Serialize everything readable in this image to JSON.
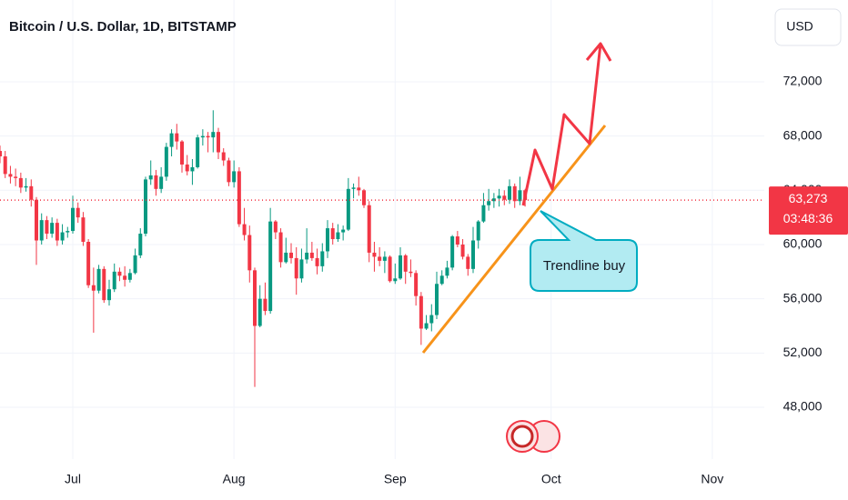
{
  "chart_data": {
    "type": "candlestick",
    "title": "Bitcoin / U.S. Dollar, 1D, BITSTAMP",
    "currency": "USD",
    "annotation": "Trendline buy",
    "up_color": "#089981",
    "down_color": "#f23645",
    "x": [
      0,
      1,
      2,
      3,
      4,
      5,
      6,
      7,
      8,
      9,
      10,
      11,
      12,
      13,
      14,
      15,
      16,
      17,
      18,
      19,
      20,
      21,
      22,
      23,
      24,
      25,
      26,
      27,
      28,
      29,
      30,
      31,
      32,
      33,
      34,
      35,
      36,
      37,
      38,
      39,
      40,
      41,
      42,
      43,
      44,
      45,
      46,
      47,
      48,
      49,
      50,
      51,
      52,
      53,
      54,
      55,
      56,
      57,
      58,
      59,
      60,
      61,
      62,
      63,
      64,
      65,
      66,
      67,
      68,
      69,
      70,
      71,
      72,
      73,
      74,
      75,
      76,
      77,
      78,
      79,
      80,
      81,
      82,
      83,
      84,
      85,
      86,
      87,
      88,
      89,
      90,
      91,
      92,
      93,
      94,
      95,
      96,
      97,
      98,
      99,
      100,
      101
    ],
    "open": [
      66900,
      66500,
      65200,
      65000,
      64900,
      64200,
      64300,
      63300,
      60300,
      61800,
      60800,
      61600,
      60300,
      60900,
      61000,
      62700,
      62000,
      60200,
      57000,
      56600,
      58200,
      55900,
      56700,
      58000,
      57700,
      57400,
      57900,
      59200,
      60800,
      64800,
      65100,
      64100,
      65000,
      67200,
      68200,
      67600,
      65900,
      65400,
      65700,
      67900,
      68000,
      67900,
      68300,
      66800,
      66200,
      64600,
      65400,
      61500,
      60700,
      58100,
      54000,
      56000,
      55100,
      61700,
      60900,
      58700,
      59400,
      59000,
      57500,
      58900,
      59400,
      59000,
      58400,
      59500,
      61200,
      60400,
      60900,
      61100,
      64100,
      64200,
      64000,
      62900,
      59400,
      59100,
      58800,
      59100,
      57300,
      57500,
      59200,
      58000,
      57900,
      56200,
      53800,
      54200,
      54800,
      57100,
      57700,
      58300,
      60600,
      60000,
      59100,
      58200,
      60300,
      61700,
      62900,
      63200,
      63400,
      63600,
      63300,
      64300,
      63200,
      64000
    ],
    "high": [
      67300,
      66900,
      65800,
      65600,
      65300,
      64900,
      64800,
      63500,
      62300,
      62100,
      62000,
      61900,
      61500,
      61300,
      63600,
      63100,
      62400,
      60400,
      58300,
      58500,
      58400,
      57400,
      58600,
      58300,
      58400,
      58200,
      59700,
      61200,
      65000,
      66200,
      65500,
      65700,
      67500,
      68500,
      68900,
      67700,
      66600,
      66300,
      68100,
      68500,
      68300,
      69900,
      68600,
      67100,
      66400,
      66200,
      65700,
      62700,
      61400,
      58300,
      57000,
      57200,
      62700,
      61800,
      61200,
      60500,
      60100,
      59800,
      59700,
      61200,
      60200,
      59700,
      60100,
      61800,
      61600,
      61500,
      61400,
      64900,
      64500,
      65000,
      64100,
      63200,
      60200,
      59800,
      59500,
      59200,
      58600,
      59800,
      59300,
      58900,
      58100,
      56500,
      54800,
      55600,
      58000,
      58100,
      58800,
      60700,
      61000,
      60400,
      59300,
      61300,
      61800,
      63800,
      64100,
      63800,
      64100,
      64000,
      64800,
      64500,
      65000,
      64100
    ],
    "low": [
      66000,
      64900,
      64500,
      64300,
      63800,
      63900,
      62800,
      58500,
      60000,
      60400,
      60500,
      59900,
      60000,
      60500,
      60800,
      61600,
      59900,
      56800,
      53500,
      56400,
      55700,
      55500,
      56500,
      57300,
      56900,
      57200,
      57800,
      59000,
      60600,
      64400,
      63600,
      63800,
      64700,
      66500,
      67000,
      65300,
      65100,
      64400,
      65600,
      67300,
      66800,
      66800,
      66300,
      65800,
      64300,
      64200,
      61300,
      60300,
      57200,
      49500,
      53900,
      54800,
      54900,
      60400,
      58300,
      58600,
      58600,
      56300,
      57200,
      58600,
      58800,
      57800,
      58000,
      59000,
      60000,
      60200,
      60300,
      61000,
      63400,
      63600,
      62700,
      58700,
      58000,
      58400,
      57900,
      57200,
      57100,
      57400,
      57100,
      57600,
      55500,
      52600,
      53700,
      53600,
      54500,
      57000,
      57500,
      58100,
      59800,
      58900,
      57700,
      57900,
      59700,
      61600,
      62500,
      62700,
      62800,
      62900,
      63000,
      62700,
      62900,
      62800
    ],
    "close": [
      66500,
      65200,
      65000,
      64900,
      64200,
      64300,
      63300,
      60300,
      61800,
      60800,
      61600,
      60300,
      60900,
      61000,
      62700,
      62000,
      60200,
      57000,
      56600,
      58200,
      55900,
      56700,
      58000,
      57700,
      57400,
      57900,
      59200,
      60800,
      64800,
      65100,
      64100,
      65000,
      67200,
      68200,
      67600,
      65900,
      65400,
      65700,
      67900,
      68000,
      67900,
      68300,
      66800,
      66200,
      64600,
      65400,
      61500,
      60700,
      58100,
      54000,
      56000,
      55100,
      61700,
      60900,
      58700,
      59400,
      59000,
      57500,
      58900,
      59400,
      59000,
      58400,
      59500,
      61200,
      60400,
      60900,
      61100,
      64100,
      64200,
      64000,
      62900,
      59400,
      59100,
      58800,
      59100,
      57300,
      57500,
      59200,
      58000,
      57900,
      56200,
      53800,
      54200,
      54800,
      57100,
      57700,
      58300,
      60600,
      60000,
      59100,
      58200,
      60300,
      61700,
      62900,
      63200,
      63400,
      63600,
      63300,
      64300,
      63200,
      64000,
      63273
    ],
    "xlim": [
      0,
      147
    ],
    "xticks": [
      {
        "value": 14,
        "label": "Jul"
      },
      {
        "value": 45,
        "label": "Aug"
      },
      {
        "value": 76,
        "label": "Sep"
      },
      {
        "value": 106,
        "label": "Oct"
      },
      {
        "value": 137,
        "label": "Nov"
      }
    ],
    "ylim": [
      44180,
      78030
    ],
    "yticks": [
      {
        "value": 48000,
        "label": "48,000"
      },
      {
        "value": 52000,
        "label": "52,000"
      },
      {
        "value": 56000,
        "label": "56,000"
      },
      {
        "value": 60000,
        "label": "60,000"
      },
      {
        "value": 64000,
        "label": "64,000"
      },
      {
        "value": 68000,
        "label": "68,000"
      },
      {
        "value": 72000,
        "label": "72,000"
      }
    ],
    "last_price": {
      "value": 63273,
      "label": "63,273"
    },
    "countdown": "03:48:36"
  }
}
